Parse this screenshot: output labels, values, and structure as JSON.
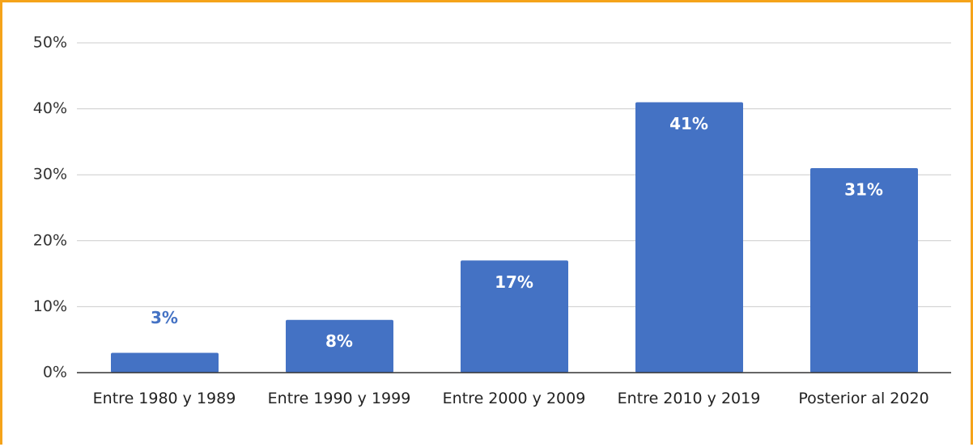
{
  "chart_data": {
    "type": "bar",
    "categories": [
      "Entre 1980 y 1989",
      "Entre 1990 y 1999",
      "Entre 2000 y 2009",
      "Entre 2010 y 2019",
      "Posterior al 2020"
    ],
    "values": [
      3,
      8,
      17,
      41,
      31
    ],
    "value_labels": [
      "3%",
      "8%",
      "17%",
      "41%",
      "31%"
    ],
    "color": "#4472c4",
    "ylim": [
      0,
      50
    ],
    "yticks": [
      {
        "value": 0,
        "label": "0%"
      },
      {
        "value": 10,
        "label": "10%"
      },
      {
        "value": 20,
        "label": "20%"
      },
      {
        "value": 30,
        "label": "30%"
      },
      {
        "value": 40,
        "label": "40%"
      },
      {
        "value": 50,
        "label": "50%"
      }
    ],
    "grid": true
  }
}
